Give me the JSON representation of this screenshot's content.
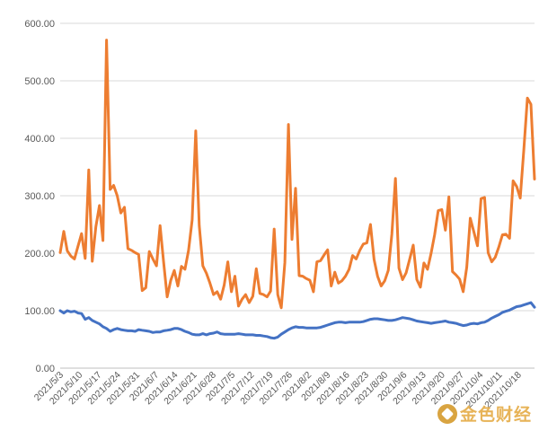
{
  "watermark": {
    "text": "金色财经"
  },
  "colors": {
    "series_orange": "#ED7D31",
    "series_blue": "#4472C4",
    "grid": "#d9d9d9",
    "text": "#595959"
  },
  "chart_data": {
    "type": "line",
    "grid": true,
    "legend": "none",
    "ylim": [
      0,
      600
    ],
    "y_ticks": [
      "0.00",
      "100.00",
      "200.00",
      "300.00",
      "400.00",
      "500.00",
      "600.00"
    ],
    "x_ticks": [
      "2021/5/3",
      "2021/5/10",
      "2021/5/17",
      "2021/5/24",
      "2021/5/31",
      "2021/6/7",
      "2021/6/14",
      "2021/6/21",
      "2021/6/28",
      "2021/7/5",
      "2021/7/12",
      "2021/7/19",
      "2021/7/26",
      "2021/8/2",
      "2021/8/9",
      "2021/8/16",
      "2021/8/23",
      "2021/8/30",
      "2021/9/6",
      "2021/9/13",
      "2021/9/20",
      "2021/9/27",
      "2021/10/4",
      "2021/10/11",
      "2021/10/18"
    ],
    "x_start": "2021/5/3",
    "x_end": "2021/10/24",
    "series": [
      {
        "color": "#ED7D31",
        "values": [
          201,
          238,
          204,
          195,
          190,
          212,
          234,
          191,
          345,
          186,
          246,
          283,
          222,
          571,
          311,
          318,
          300,
          270,
          280,
          208,
          205,
          201,
          198,
          135,
          140,
          203,
          190,
          178,
          248,
          185,
          124,
          153,
          170,
          143,
          177,
          172,
          205,
          258,
          413,
          248,
          178,
          165,
          148,
          128,
          133,
          120,
          145,
          185,
          133,
          160,
          108,
          120,
          128,
          114,
          125,
          173,
          130,
          128,
          124,
          134,
          242,
          128,
          105,
          184,
          424,
          224,
          313,
          161,
          160,
          156,
          153,
          133,
          185,
          187,
          197,
          206,
          143,
          167,
          148,
          152,
          160,
          172,
          196,
          190,
          205,
          216,
          218,
          250,
          189,
          160,
          143,
          152,
          170,
          233,
          330,
          174,
          154,
          166,
          190,
          214,
          154,
          141,
          183,
          172,
          200,
          232,
          274,
          276,
          240,
          298,
          168,
          162,
          155,
          133,
          176,
          261,
          237,
          213,
          295,
          297,
          201,
          185,
          193,
          211,
          232,
          233,
          226,
          326,
          316,
          296,
          380,
          470,
          459,
          329
        ]
      },
      {
        "color": "#4472C4",
        "values": [
          100,
          96,
          100,
          98,
          99,
          96,
          95,
          85,
          88,
          83,
          80,
          77,
          72,
          69,
          64,
          67,
          69,
          67,
          66,
          65,
          65,
          64,
          67,
          66,
          65,
          64,
          62,
          63,
          63,
          65,
          66,
          67,
          69,
          69,
          67,
          64,
          62,
          59,
          58,
          58,
          60,
          58,
          60,
          61,
          63,
          60,
          59,
          59,
          59,
          59,
          60,
          59,
          58,
          58,
          58,
          57,
          57,
          56,
          55,
          53,
          52,
          54,
          59,
          63,
          67,
          70,
          72,
          71,
          71,
          70,
          70,
          70,
          70,
          71,
          73,
          75,
          77,
          79,
          80,
          80,
          79,
          80,
          80,
          80,
          80,
          81,
          83,
          85,
          86,
          86,
          85,
          84,
          83,
          83,
          84,
          86,
          88,
          87,
          86,
          84,
          82,
          81,
          80,
          79,
          78,
          79,
          80,
          81,
          82,
          80,
          79,
          78,
          76,
          74,
          75,
          77,
          78,
          77,
          79,
          80,
          83,
          87,
          90,
          93,
          97,
          99,
          101,
          104,
          107,
          108,
          110,
          112,
          114,
          106
        ]
      }
    ]
  }
}
